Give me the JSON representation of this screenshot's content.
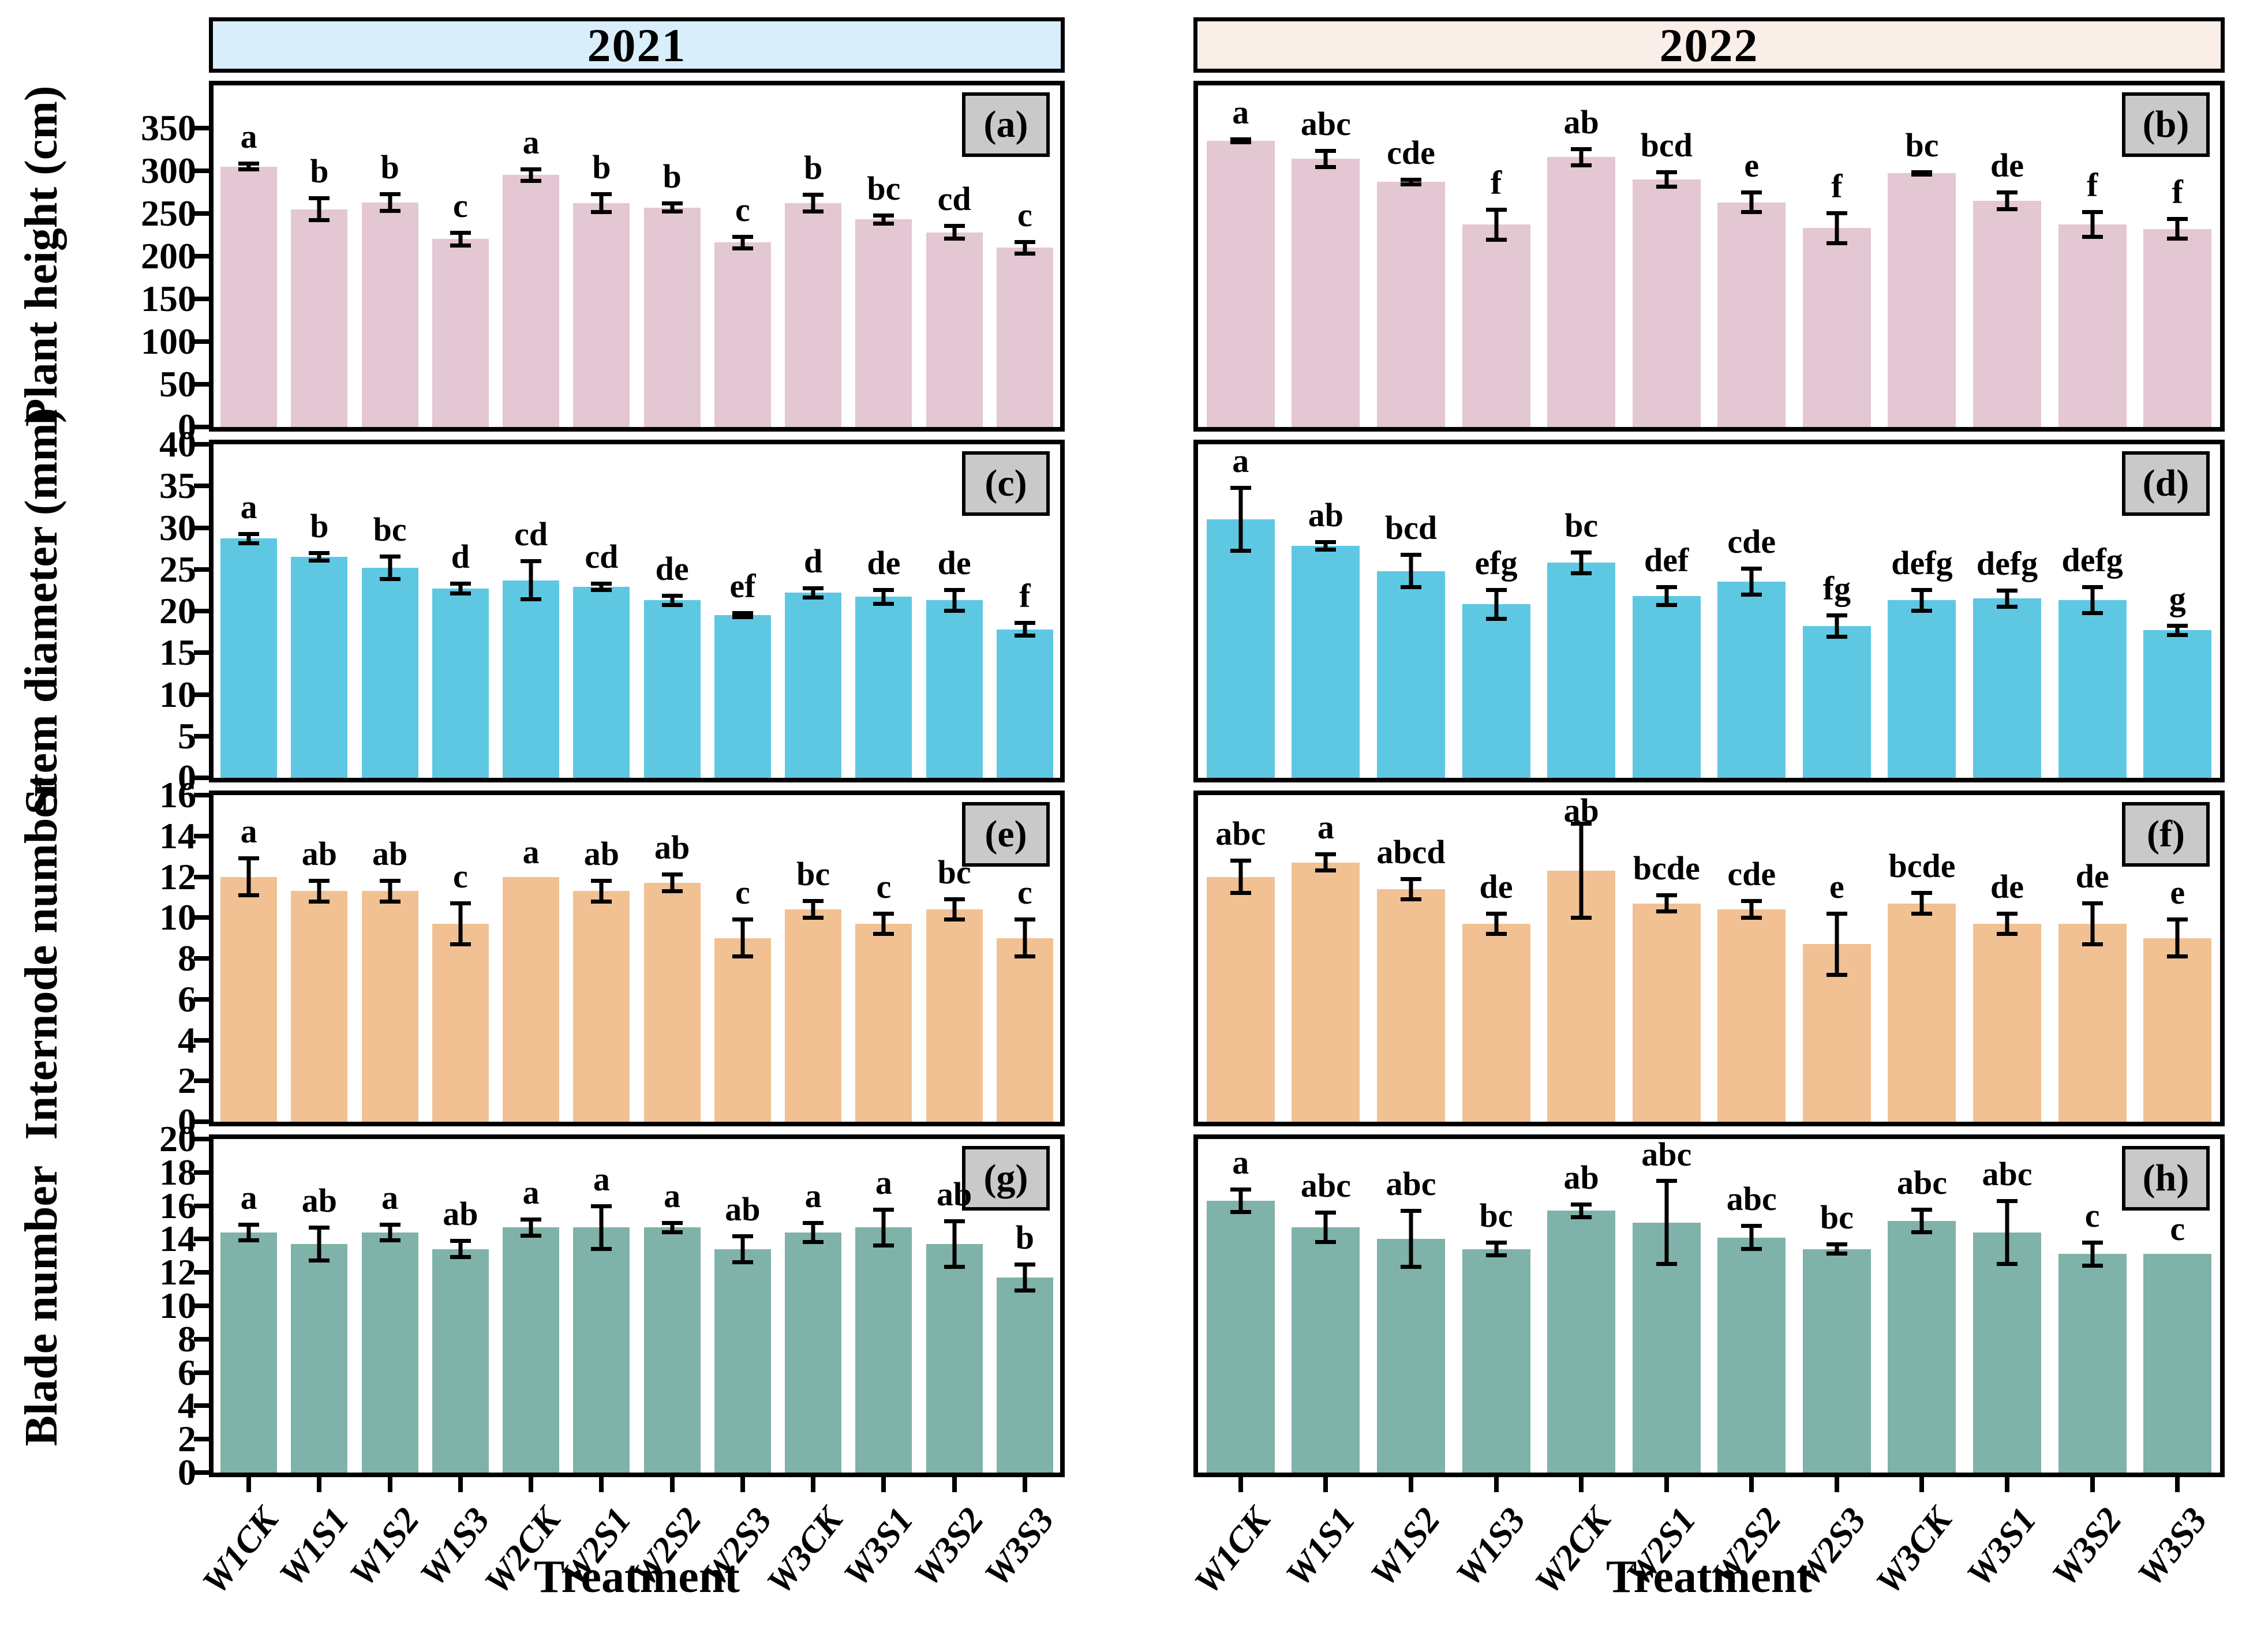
{
  "headers": [
    {
      "label": "2021",
      "bg": "#d9eefb"
    },
    {
      "label": "2022",
      "bg": "#faeee8"
    }
  ],
  "xaxis_title": "Treatment",
  "categories": [
    "W1CK",
    "W1S1",
    "W1S2",
    "W1S3",
    "W2CK",
    "W2S1",
    "W2S2",
    "W2S3",
    "W3CK",
    "W3S1",
    "W3S2",
    "W3S3"
  ],
  "colors": {
    "plant_height_bar": "#e3c7d2",
    "stem_diameter_bar": "#5ec8e2",
    "internode_bar": "#f1c193",
    "blade_bar": "#7fb2a8",
    "panel_tag_bg": "#c9c9c9",
    "header_2021_bg": "#d9eefb",
    "header_2022_bg": "#faeee8"
  },
  "chart_data": [
    {
      "type": "bar",
      "tag": "(a)",
      "year": "2021",
      "ylabel": "Plant height (cm)",
      "ymax": 400,
      "tick_max": 350,
      "tick_step": 50,
      "grid": false,
      "values": [
        305,
        255,
        263,
        220,
        295,
        262,
        257,
        216,
        262,
        243,
        228,
        210
      ],
      "errors": [
        6,
        15,
        12,
        10,
        9,
        13,
        7,
        9,
        12,
        7,
        10,
        9
      ],
      "sig_letters": [
        "a",
        "b",
        "b",
        "c",
        "a",
        "b",
        "b",
        "c",
        "b",
        "bc",
        "cd",
        "c"
      ],
      "color": "#e3c7d2"
    },
    {
      "type": "bar",
      "tag": "(b)",
      "year": "2022",
      "ylabel": "Plant height (cm)",
      "ymax": 400,
      "tick_max": 350,
      "tick_step": 50,
      "grid": false,
      "values": [
        335,
        314,
        287,
        237,
        316,
        290,
        263,
        233,
        297,
        265,
        237,
        232
      ],
      "errors": [
        4,
        12,
        5,
        20,
        12,
        11,
        14,
        20,
        4,
        12,
        17,
        14
      ],
      "sig_letters": [
        "a",
        "abc",
        "cde",
        "f",
        "ab",
        "bcd",
        "e",
        "f",
        "bc",
        "de",
        "f",
        "f"
      ],
      "color": "#e3c7d2"
    },
    {
      "type": "bar",
      "tag": "(c)",
      "year": "2021",
      "ylabel": "Stem diameter (mm)",
      "ymax": 40,
      "tick_max": 40,
      "tick_step": 5,
      "grid": false,
      "values": [
        28.7,
        26.5,
        25.2,
        22.7,
        23.7,
        22.9,
        21.3,
        19.5,
        22.2,
        21.7,
        21.3,
        17.8
      ],
      "errors": [
        0.8,
        0.7,
        1.6,
        0.8,
        2.5,
        0.6,
        0.8,
        0.5,
        0.8,
        1.1,
        1.5,
        1.0
      ],
      "sig_letters": [
        "a",
        "b",
        "bc",
        "d",
        "cd",
        "cd",
        "de",
        "ef",
        "d",
        "de",
        "de",
        "f"
      ],
      "color": "#5ec8e2"
    },
    {
      "type": "bar",
      "tag": "(d)",
      "year": "2022",
      "ylabel": "Stem diameter (mm)",
      "ymax": 40,
      "tick_max": 40,
      "tick_step": 5,
      "grid": false,
      "values": [
        31.0,
        27.8,
        24.8,
        20.8,
        25.8,
        21.8,
        23.5,
        18.2,
        21.3,
        21.5,
        21.3,
        17.7
      ],
      "errors": [
        4.0,
        0.7,
        2.2,
        2.0,
        1.5,
        1.3,
        1.8,
        1.5,
        1.5,
        1.2,
        1.8,
        0.8
      ],
      "sig_letters": [
        "a",
        "ab",
        "bcd",
        "efg",
        "bc",
        "def",
        "cde",
        "fg",
        "defg",
        "defg",
        "defg",
        "g"
      ],
      "color": "#5ec8e2"
    },
    {
      "type": "bar",
      "tag": "(e)",
      "year": "2021",
      "ylabel": "Internode number",
      "ymax": 16,
      "tick_max": 16,
      "tick_step": 2,
      "grid": false,
      "values": [
        12.0,
        11.3,
        11.3,
        9.7,
        12.0,
        11.3,
        11.7,
        9.0,
        10.4,
        9.7,
        10.4,
        9.0
      ],
      "errors": [
        1.0,
        0.6,
        0.6,
        1.1,
        0,
        0.6,
        0.5,
        1.0,
        0.5,
        0.6,
        0.6,
        1.0
      ],
      "sig_letters": [
        "a",
        "ab",
        "ab",
        "c",
        "a",
        "ab",
        "ab",
        "c",
        "bc",
        "c",
        "bc",
        "c"
      ],
      "color": "#f1c193"
    },
    {
      "type": "bar",
      "tag": "(f)",
      "year": "2022",
      "ylabel": "Internode number",
      "ymax": 16,
      "tick_max": 16,
      "tick_step": 2,
      "grid": false,
      "values": [
        12.0,
        12.7,
        11.4,
        9.7,
        12.3,
        10.7,
        10.4,
        8.7,
        10.7,
        9.7,
        9.7,
        9.0
      ],
      "errors": [
        0.9,
        0.5,
        0.6,
        0.6,
        2.4,
        0.5,
        0.5,
        1.6,
        0.6,
        0.6,
        1.1,
        1.0
      ],
      "sig_letters": [
        "abc",
        "a",
        "abcd",
        "de",
        "ab",
        "bcde",
        "cde",
        "e",
        "bcde",
        "de",
        "de",
        "e"
      ],
      "color": "#f1c193"
    },
    {
      "type": "bar",
      "tag": "(g)",
      "year": "2021",
      "ylabel": "Blade number",
      "ymax": 20,
      "tick_max": 20,
      "tick_step": 2,
      "grid": false,
      "values": [
        14.4,
        13.7,
        14.4,
        13.4,
        14.7,
        14.7,
        14.7,
        13.4,
        14.4,
        14.7,
        13.7,
        11.7
      ],
      "errors": [
        0.6,
        1.1,
        0.6,
        0.6,
        0.6,
        1.4,
        0.4,
        0.9,
        0.7,
        1.2,
        1.5,
        0.9
      ],
      "sig_letters": [
        "a",
        "ab",
        "a",
        "ab",
        "a",
        "a",
        "a",
        "ab",
        "a",
        "a",
        "ab",
        "b"
      ],
      "color": "#7fb2a8"
    },
    {
      "type": "bar",
      "tag": "(h)",
      "year": "2022",
      "ylabel": "Blade number",
      "ymax": 20,
      "tick_max": 20,
      "tick_step": 2,
      "grid": false,
      "values": [
        16.3,
        14.7,
        14.0,
        13.4,
        15.7,
        15.0,
        14.1,
        13.4,
        15.1,
        14.4,
        13.1,
        13.1
      ],
      "errors": [
        0.8,
        1.0,
        1.8,
        0.5,
        0.5,
        2.6,
        0.8,
        0.4,
        0.8,
        2.0,
        0.8,
        0
      ],
      "sig_letters": [
        "a",
        "abc",
        "abc",
        "bc",
        "ab",
        "abc",
        "abc",
        "bc",
        "abc",
        "abc",
        "c",
        "c"
      ],
      "color": "#7fb2a8"
    }
  ]
}
